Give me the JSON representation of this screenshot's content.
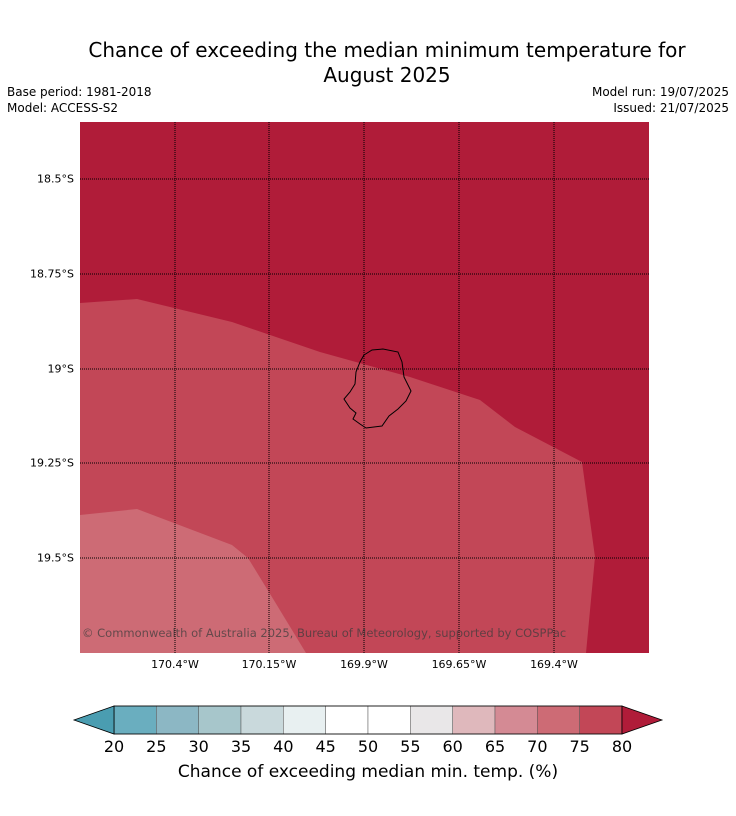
{
  "title_line1": "Chance of exceeding the median minimum temperature for",
  "title_line2": "August 2025",
  "meta": {
    "base_period": "Base period: 1981-2018",
    "model": "Model: ACCESS-S2",
    "model_run": "Model run: 19/07/2025",
    "issued": "Issued: 21/07/2025"
  },
  "map": {
    "lat_labels": [
      "18.5°S",
      "18.75°S",
      "19°S",
      "19.25°S",
      "19.5°S"
    ],
    "lon_labels": [
      "170.4°W",
      "170.15°W",
      "169.9°W",
      "169.65°W",
      "169.4°W"
    ],
    "copyright": "© Commonwealth of Australia 2025, Bureau of Meteorology, supported by COSPPac",
    "zones": [
      {
        "category": "80+",
        "color": "#b01c39"
      },
      {
        "category": "75-80",
        "color": "#c24757"
      },
      {
        "category": "70-75",
        "color": "#cd6b75"
      }
    ]
  },
  "colorbar": {
    "title": "Chance of exceeding median min. temp. (%)",
    "ticks": [
      "20",
      "25",
      "30",
      "35",
      "40",
      "45",
      "50",
      "55",
      "60",
      "65",
      "70",
      "75",
      "80"
    ],
    "under_color": "#4a9db1",
    "over_color": "#b01c39",
    "colors": [
      "#6aaebf",
      "#8cb7c4",
      "#a7c6cb",
      "#c9d9dc",
      "#e8f0f1",
      "#ffffff",
      "#ffffff",
      "#e9e7e8",
      "#dfb8bc",
      "#d48a94",
      "#cd6b75",
      "#c24757"
    ]
  }
}
